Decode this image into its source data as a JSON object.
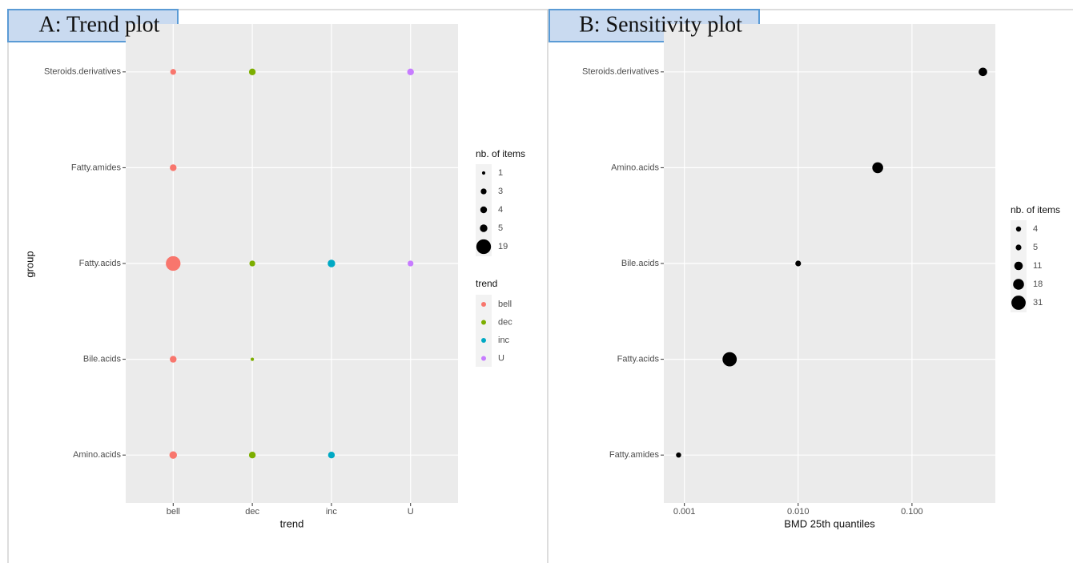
{
  "chart_data": [
    {
      "type": "bubble",
      "title": "A: Trend plot",
      "x_label": "trend",
      "y_label": "group",
      "categories": [
        "bell",
        "dec",
        "inc",
        "U"
      ],
      "y_categories": [
        "Steroids.derivatives",
        "Fatty.amides",
        "Fatty.acids",
        "Bile.acids",
        "Amino.acids"
      ],
      "series": [
        {
          "name": "bell",
          "color": "#F8766D",
          "y": [
            "Steroids.derivatives",
            "Fatty.amides",
            "Fatty.acids",
            "Bile.acids",
            "Amino.acids"
          ],
          "sizes": [
            3,
            4,
            19,
            4,
            5
          ]
        },
        {
          "name": "dec",
          "color": "#7CAE00",
          "y": [
            "Steroids.derivatives",
            "Fatty.acids",
            "Bile.acids",
            "Amino.acids"
          ],
          "sizes": [
            4,
            3,
            1,
            4
          ]
        },
        {
          "name": "inc",
          "color": "#00A9C4",
          "y": [
            "Fatty.acids",
            "Amino.acids"
          ],
          "sizes": [
            5,
            4
          ]
        },
        {
          "name": "U",
          "color": "#C77CFF",
          "y": [
            "Steroids.derivatives",
            "Fatty.acids"
          ],
          "sizes": [
            4,
            3
          ]
        }
      ],
      "size_legend_title": "nb. of items",
      "size_legend": [
        1,
        3,
        4,
        5,
        19
      ],
      "color_legend_title": "trend",
      "grid": true
    },
    {
      "type": "bubble",
      "title": "B: Sensitivity plot",
      "x_label": "BMD 25th quantiles",
      "x_log": true,
      "y_categories": [
        "Steroids.derivatives",
        "Amino.acids",
        "Bile.acids",
        "Fatty.acids",
        "Fatty.amides"
      ],
      "series": [
        {
          "color": "#000000",
          "values": [
            0.42,
            0.05,
            0.01,
            0.0025,
            0.00089
          ],
          "sizes": [
            11,
            18,
            5,
            31,
            4
          ]
        }
      ],
      "xlim": [
        0.00066,
        0.54
      ],
      "xticks": [
        0.001,
        {
          "value": 0.01,
          "label": "0.010"
        },
        {
          "value": 0.1,
          "label": "0.100"
        }
      ],
      "size_legend_title": "nb. of items",
      "size_legend": [
        4,
        5,
        11,
        18,
        31
      ],
      "grid": true
    }
  ]
}
